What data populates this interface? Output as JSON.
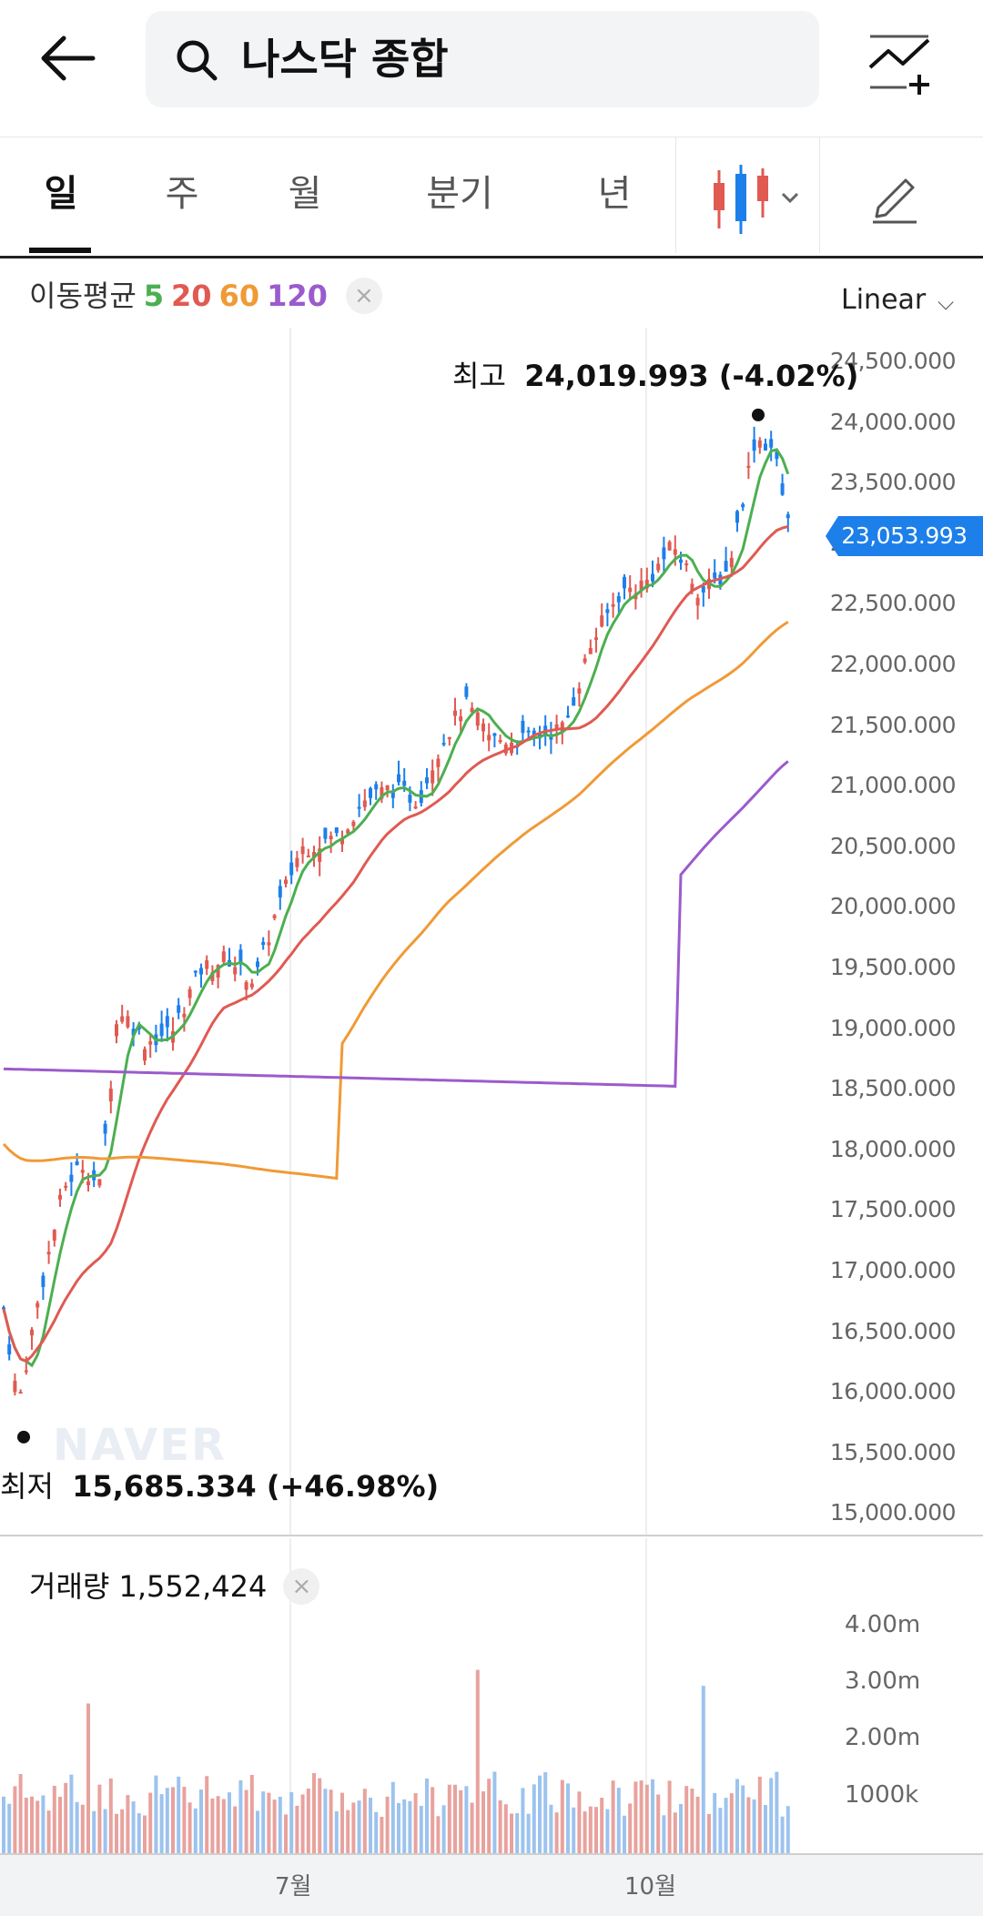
{
  "header": {
    "back_icon": "arrow-left-icon",
    "search_icon": "search-icon",
    "search_text": "나스닥 종합",
    "compare_icon": "chart-compare-plus-icon"
  },
  "tabs": [
    {
      "label": "일",
      "active": true
    },
    {
      "label": "주",
      "active": false
    },
    {
      "label": "월",
      "active": false
    },
    {
      "label": "분기",
      "active": false
    },
    {
      "label": "년",
      "active": false
    }
  ],
  "toolbar": {
    "chart_type_icon": "candlestick-icon",
    "draw_icon": "pencil-icon"
  },
  "ma_legend": {
    "label": "이동평균",
    "items": [
      {
        "label": "5",
        "color": "#4caf50"
      },
      {
        "label": "20",
        "color": "#e05a52"
      },
      {
        "label": "60",
        "color": "#f09a35"
      },
      {
        "label": "120",
        "color": "#9b5bcc"
      }
    ],
    "close": "×"
  },
  "scale": {
    "label": "Linear",
    "chevron": "⌵"
  },
  "price_axis": [
    "24,500.000",
    "24,000.000",
    "23,500.000",
    "23,000.000",
    "22,500.000",
    "22,000.000",
    "21,500.000",
    "21,000.000",
    "20,500.000",
    "20,000.000",
    "19,500.000",
    "19,000.000",
    "18,500.000",
    "18,000.000",
    "17,500.000",
    "17,000.000",
    "16,500.000",
    "16,000.000",
    "15,500.000",
    "15,000.000"
  ],
  "current_price": "23,053.993",
  "high": {
    "label": "최고",
    "value": "24,019.993 (-4.02%)"
  },
  "low": {
    "label": "최저",
    "value": "15,685.334 (+46.98%)"
  },
  "watermark": "NAVER",
  "volume": {
    "label": "거래량",
    "value": "1,552,424",
    "close": "×",
    "axis": [
      "4.00m",
      "3.00m",
      "2.00m",
      "1000k"
    ]
  },
  "months": [
    "7월",
    "10월"
  ],
  "colors": {
    "up": "#e05a52",
    "down": "#1d7fea",
    "accent": "#1d7fea"
  }
}
